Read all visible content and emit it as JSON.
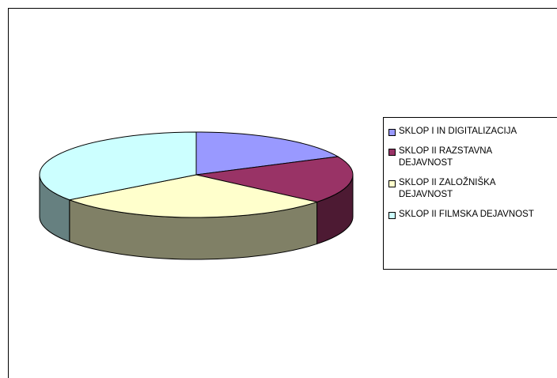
{
  "chart_data": {
    "type": "pie3d",
    "categories": [
      "SKLOP I IN DIGITALIZACIJA",
      "SKLOP II RAZSTAVNA DEJAVNOST",
      "SKLOP II ZALOŽNIŠKA DEJAVNOST",
      "SKLOP II FILMSKA DEJAVNOST"
    ],
    "values": [
      18,
      18,
      29,
      35
    ],
    "colors": [
      "#9999ff",
      "#993366",
      "#ffffcc",
      "#ccffff"
    ],
    "side_colors": [
      "#4d4d80",
      "#4d1a33",
      "#808066",
      "#668080"
    ],
    "legend": "right"
  }
}
